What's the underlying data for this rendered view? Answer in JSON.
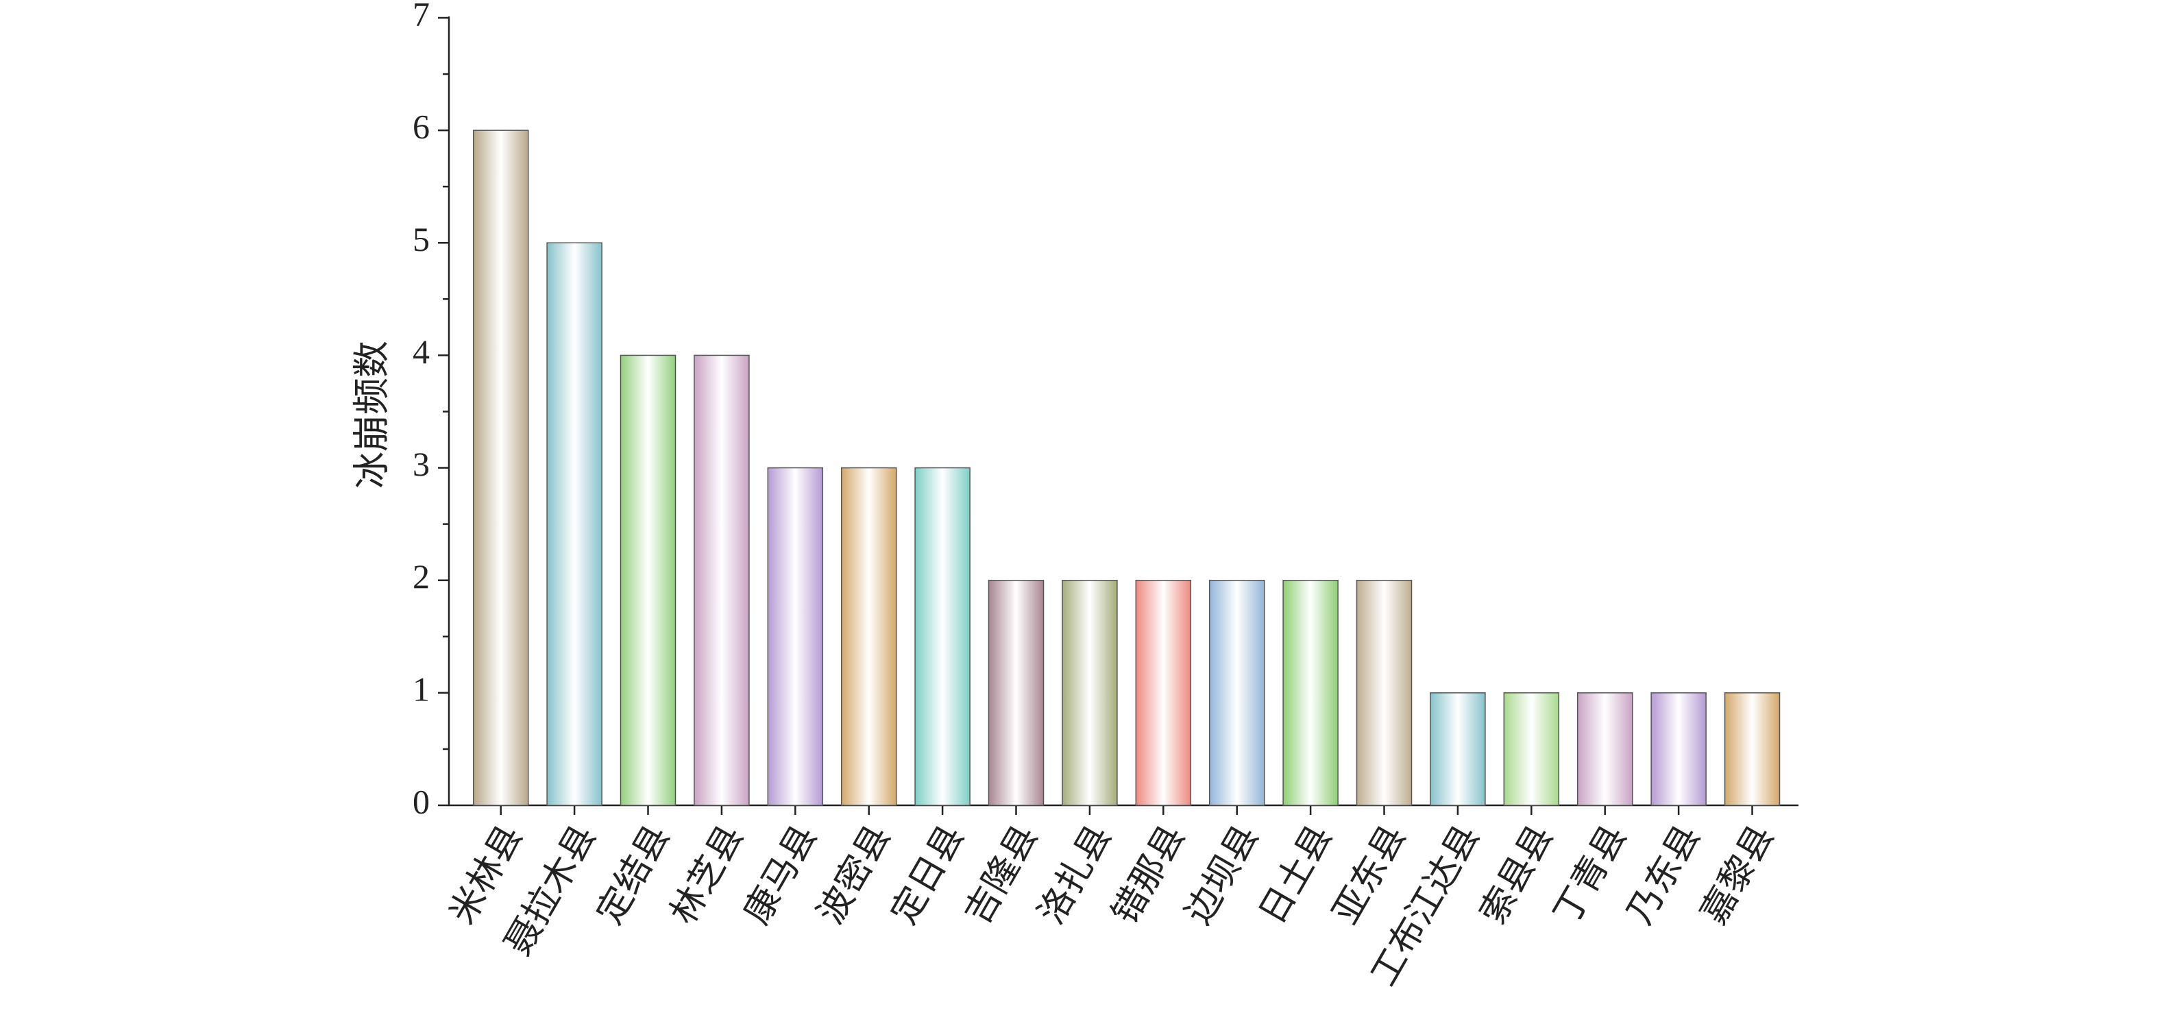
{
  "chart_data": {
    "type": "bar",
    "y_label": "冰崩频数",
    "categories": [
      "米林县",
      "聂拉木县",
      "定结县",
      "林芝县",
      "康马县",
      "波密县",
      "定日县",
      "吉隆县",
      "洛扎县",
      "错那县",
      "边坝县",
      "日土县",
      "亚东县",
      "工布江达县",
      "索县县",
      "丁青县",
      "乃东县",
      "嘉黎县"
    ],
    "values": [
      6,
      5,
      4,
      4,
      3,
      3,
      3,
      2,
      2,
      2,
      2,
      2,
      2,
      1,
      1,
      1,
      1,
      1
    ],
    "colors": [
      "#b9a78a",
      "#86c3cc",
      "#93cf7f",
      "#c9a3c4",
      "#b59ad3",
      "#d3a86a",
      "#7dcfc7",
      "#a88591",
      "#a6ad7c",
      "#ec8a80",
      "#93b5d8",
      "#8fcf74",
      "#bfae8f",
      "#86c3cc",
      "#a9d98d",
      "#c9a3c4",
      "#b59ad3",
      "#d3a86a"
    ],
    "ylim": [
      0,
      7
    ],
    "yticks": [
      0,
      1,
      2,
      3,
      4,
      5,
      6,
      7
    ],
    "minor_yticks": [
      0.5,
      1.5,
      2.5,
      3.5,
      4.5,
      5.5,
      6.5
    ],
    "grid": false
  }
}
